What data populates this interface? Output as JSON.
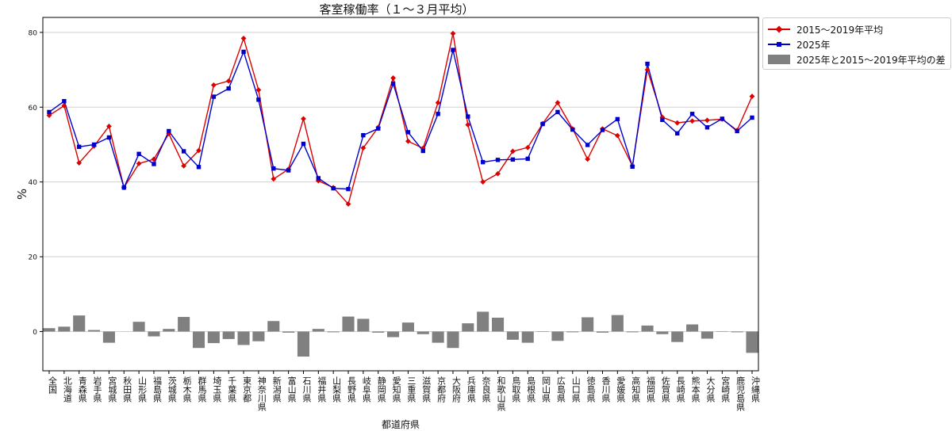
{
  "chart_data": {
    "type": "line",
    "title": "客室稼働率（１～３月平均）",
    "xlabel": "都道府県",
    "ylabel": "%",
    "ylim": [
      -10.5,
      84
    ],
    "yticks": [
      0,
      20,
      40,
      60,
      80
    ],
    "grid": true,
    "legend_position": "outside-top-right",
    "categories": [
      "全国",
      "北海道",
      "青森県",
      "岩手県",
      "宮城県",
      "秋田県",
      "山形県",
      "福島県",
      "茨城県",
      "栃木県",
      "群馬県",
      "埼玉県",
      "千葉県",
      "東京都",
      "神奈川県",
      "新潟県",
      "富山県",
      "石川県",
      "福井県",
      "山梨県",
      "長野県",
      "岐阜県",
      "静岡県",
      "愛知県",
      "三重県",
      "滋賀県",
      "京都府",
      "大阪府",
      "兵庫県",
      "奈良県",
      "和歌山県",
      "鳥取県",
      "島根県",
      "岡山県",
      "広島県",
      "山口県",
      "徳島県",
      "香川県",
      "愛媛県",
      "高知県",
      "福岡県",
      "佐賀県",
      "長崎県",
      "熊本県",
      "大分県",
      "宮崎県",
      "鹿児島県",
      "沖縄県"
    ],
    "series": [
      {
        "name": "2015～2019年平均",
        "kind": "line",
        "color": "#dd0000",
        "marker": "diamond",
        "values": [
          57.8,
          60.4,
          45.1,
          49.6,
          54.9,
          38.5,
          44.9,
          46.1,
          52.9,
          44.3,
          48.4,
          65.9,
          67.0,
          78.4,
          64.6,
          40.8,
          43.4,
          56.9,
          40.3,
          38.5,
          34.1,
          49.1,
          54.6,
          67.8,
          50.9,
          49.0,
          61.2,
          79.7,
          55.3,
          40.0,
          42.2,
          48.2,
          49.2,
          55.6,
          61.2,
          54.2,
          46.1,
          54.2,
          52.4,
          44.3,
          70.0,
          57.3,
          55.8,
          56.3,
          56.5,
          56.8,
          53.8,
          62.9
        ]
      },
      {
        "name": "2025年",
        "kind": "line",
        "color": "#0000cc",
        "marker": "square",
        "values": [
          58.7,
          61.6,
          49.4,
          50.0,
          51.9,
          38.5,
          47.5,
          44.8,
          53.6,
          48.2,
          44.0,
          62.8,
          65.0,
          74.8,
          62.0,
          43.6,
          43.1,
          50.2,
          41.0,
          38.3,
          38.1,
          52.5,
          54.3,
          66.3,
          53.3,
          48.3,
          58.2,
          75.3,
          57.5,
          45.3,
          45.9,
          46.0,
          46.2,
          55.5,
          58.7,
          54.0,
          49.9,
          53.9,
          56.8,
          44.1,
          71.6,
          56.6,
          53.0,
          58.2,
          54.6,
          56.9,
          53.6,
          57.2
        ]
      },
      {
        "name": "2025年と2015～2019年平均の差",
        "kind": "bar",
        "color": "#808080",
        "values": [
          0.9,
          1.3,
          4.3,
          0.4,
          -3.0,
          0.0,
          2.6,
          -1.3,
          0.7,
          3.9,
          -4.4,
          -3.1,
          -2.0,
          -3.6,
          -2.6,
          2.8,
          -0.3,
          -6.7,
          0.7,
          -0.2,
          4.0,
          3.4,
          -0.3,
          -1.5,
          2.4,
          -0.7,
          -3.0,
          -4.4,
          2.2,
          5.3,
          3.7,
          -2.2,
          -3.0,
          -0.1,
          -2.5,
          -0.2,
          3.8,
          -0.3,
          4.4,
          -0.2,
          1.6,
          -0.7,
          -2.8,
          1.9,
          -1.9,
          0.1,
          -0.2,
          -5.7
        ]
      }
    ]
  }
}
